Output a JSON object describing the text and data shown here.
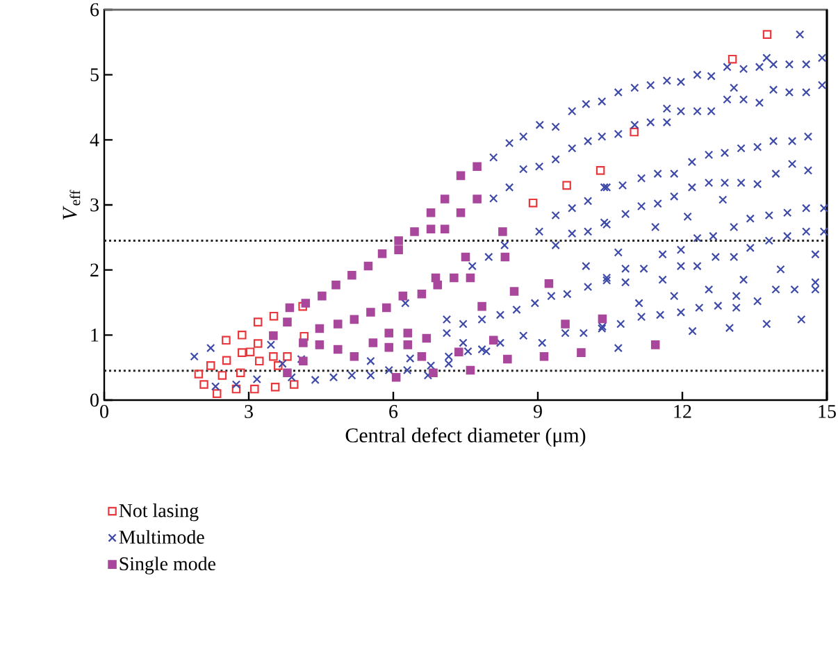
{
  "chart_data": {
    "type": "scatter",
    "xlabel": "Central defect diameter (μm)",
    "ylabel": "*V*$_{eff}$",
    "xlim": [
      0,
      15
    ],
    "ylim": [
      0,
      6
    ],
    "xticks": [
      0,
      3,
      6,
      9,
      12,
      15
    ],
    "yticks": [
      0,
      1,
      2,
      3,
      4,
      5,
      6
    ],
    "grid": false,
    "legend": "bottom left",
    "ref_lines": [
      {
        "axis": "y",
        "value": 2.45,
        "color": "#222222",
        "line_style": "dotted"
      },
      {
        "axis": "y",
        "value": 0.45,
        "color": "#222222",
        "line_style": "dotted"
      }
    ],
    "series": [
      {
        "name": "Not lasing",
        "color": "#e8383d",
        "marker": "square-open",
        "x": [
          2.53,
          2.86,
          3.19,
          3.52,
          4.12,
          4.15,
          3.19,
          2.86,
          2.54,
          2.21,
          1.96,
          2.07,
          2.34,
          2.74,
          3.12,
          3.55,
          3.94,
          2.45,
          2.83,
          3.22,
          3.51,
          3.8,
          3.03,
          3.61,
          8.9,
          9.6,
          10.3,
          11.0,
          13.04,
          13.76
        ],
        "values": [
          0.92,
          1.0,
          1.2,
          1.29,
          1.44,
          0.98,
          0.87,
          0.73,
          0.61,
          0.53,
          0.4,
          0.24,
          0.1,
          0.17,
          0.17,
          0.2,
          0.24,
          0.38,
          0.42,
          0.6,
          0.67,
          0.67,
          0.74,
          0.53,
          3.03,
          3.3,
          3.53,
          4.12,
          5.24,
          5.62
        ]
      },
      {
        "name": "Multimode",
        "color": "#3d4aa8",
        "marker": "cross",
        "x": [
          1.87,
          2.21,
          2.31,
          2.74,
          3.17,
          3.46,
          3.7,
          4.09,
          4.38,
          4.76,
          5.14,
          5.53,
          3.89,
          8.08,
          8.41,
          8.7,
          9.04,
          9.37,
          9.71,
          10.0,
          10.33,
          8.08,
          8.41,
          8.7,
          9.03,
          9.37,
          9.71,
          10.04,
          10.33,
          9.37,
          9.71,
          10.04,
          10.38,
          9.03,
          9.37,
          9.71,
          10.04,
          10.38,
          7.64,
          7.98,
          8.31,
          10.0,
          10.43,
          10.04,
          9.61,
          9.28,
          8.94,
          8.56,
          8.22,
          7.84,
          7.45,
          7.11,
          6.25,
          7.11,
          7.45,
          7.84,
          8.22,
          8.7,
          9.09,
          9.57,
          9.95,
          10.33,
          5.53,
          5.91,
          6.35,
          6.78,
          7.15,
          7.55,
          7.93,
          6.29,
          6.72,
          7.15,
          10.67,
          11.01,
          11.34,
          11.68,
          11.97,
          12.31,
          12.6,
          12.93,
          13.27,
          13.6,
          13.89,
          14.22,
          14.57,
          14.9,
          14.44,
          13.75,
          10.67,
          11.01,
          11.34,
          11.68,
          11.68,
          11.97,
          12.31,
          12.6,
          12.93,
          13.27,
          13.6,
          13.89,
          14.22,
          14.57,
          14.9,
          13.07,
          10.43,
          10.76,
          11.15,
          11.49,
          11.83,
          12.2,
          12.55,
          12.88,
          13.22,
          13.56,
          13.89,
          14.28,
          14.61,
          10.43,
          10.82,
          11.15,
          11.49,
          11.83,
          12.2,
          12.55,
          12.88,
          13.22,
          13.56,
          13.94,
          14.28,
          14.61,
          12.84,
          11.44,
          12.11,
          12.31,
          12.64,
          13.07,
          13.41,
          13.8,
          14.18,
          14.57,
          14.94,
          14.57,
          14.94,
          13.8,
          14.18,
          10.67,
          10.43,
          10.82,
          11.2,
          11.59,
          11.97,
          11.97,
          12.31,
          12.69,
          13.07,
          13.41,
          14.04,
          14.76,
          10.82,
          11.59,
          13.27,
          11.1,
          11.83,
          12.55,
          13.12,
          13.94,
          14.33,
          14.76,
          14.76,
          10.72,
          11.15,
          11.54,
          11.97,
          12.35,
          12.74,
          13.12,
          13.56,
          10.34,
          10.67,
          12.21,
          12.98,
          13.75,
          14.47
        ],
        "values": [
          0.67,
          0.8,
          0.21,
          0.24,
          0.32,
          0.85,
          0.56,
          0.63,
          0.31,
          0.35,
          0.38,
          0.6,
          0.35,
          3.73,
          3.95,
          4.05,
          4.23,
          4.2,
          4.44,
          4.55,
          4.59,
          3.1,
          3.27,
          3.55,
          3.59,
          3.7,
          3.87,
          3.98,
          4.05,
          2.84,
          2.95,
          3.06,
          3.27,
          2.59,
          2.38,
          2.56,
          2.59,
          2.73,
          2.06,
          2.2,
          2.38,
          2.06,
          1.84,
          1.74,
          1.63,
          1.6,
          1.49,
          1.39,
          1.31,
          1.24,
          1.17,
          1.24,
          1.49,
          1.03,
          0.88,
          0.78,
          0.88,
          0.99,
          0.88,
          1.03,
          1.03,
          1.1,
          0.38,
          0.46,
          0.64,
          0.53,
          0.67,
          0.75,
          0.75,
          0.46,
          0.38,
          0.56,
          4.73,
          4.8,
          4.84,
          4.91,
          4.89,
          5.0,
          4.98,
          5.12,
          5.09,
          5.12,
          5.16,
          5.16,
          5.16,
          5.26,
          5.62,
          5.26,
          4.09,
          4.23,
          4.27,
          4.27,
          4.48,
          4.44,
          4.44,
          4.44,
          4.62,
          4.62,
          4.57,
          4.77,
          4.73,
          4.73,
          4.84,
          4.8,
          3.27,
          3.3,
          3.41,
          3.48,
          3.48,
          3.66,
          3.77,
          3.8,
          3.87,
          3.89,
          3.98,
          3.98,
          4.05,
          2.7,
          2.86,
          2.98,
          3.02,
          3.13,
          3.27,
          3.34,
          3.34,
          3.34,
          3.32,
          3.48,
          3.63,
          3.53,
          3.08,
          2.66,
          2.82,
          2.49,
          2.52,
          2.66,
          2.79,
          2.84,
          2.88,
          2.95,
          2.95,
          2.59,
          2.59,
          2.45,
          2.52,
          2.27,
          1.88,
          2.02,
          2.02,
          2.24,
          2.31,
          2.06,
          2.06,
          2.2,
          2.2,
          2.34,
          2.01,
          2.24,
          1.81,
          1.85,
          1.85,
          1.49,
          1.6,
          1.7,
          1.6,
          1.7,
          1.7,
          1.81,
          1.7,
          1.17,
          1.28,
          1.31,
          1.35,
          1.42,
          1.45,
          1.42,
          1.52,
          1.13,
          0.8,
          1.06,
          1.11,
          1.17,
          1.24
        ]
      },
      {
        "name": "Single mode",
        "color": "#a8479b",
        "marker": "square",
        "x": [
          3.85,
          4.18,
          4.52,
          4.81,
          5.14,
          5.48,
          5.77,
          6.11,
          6.11,
          6.44,
          6.78,
          7.07,
          6.78,
          7.07,
          7.4,
          7.4,
          7.74,
          7.74,
          8.27,
          3.8,
          3.51,
          4.13,
          4.47,
          4.85,
          5.19,
          5.53,
          4.47,
          4.85,
          5.19,
          4.13,
          3.8,
          5.86,
          6.2,
          6.59,
          6.92,
          6.88,
          7.26,
          7.6,
          7.5,
          8.32,
          8.51,
          9.23,
          5.91,
          6.3,
          6.69,
          5.58,
          5.91,
          6.3,
          6.59,
          6.06,
          6.83,
          7.6,
          7.36,
          7.84,
          8.08,
          8.37,
          9.13,
          9.57,
          9.9,
          10.34,
          11.44
        ],
        "values": [
          1.42,
          1.49,
          1.6,
          1.77,
          1.92,
          2.06,
          2.25,
          2.31,
          2.45,
          2.59,
          2.63,
          2.63,
          2.88,
          3.09,
          2.88,
          3.45,
          3.09,
          3.59,
          2.59,
          1.2,
          0.99,
          0.88,
          1.1,
          1.17,
          1.24,
          1.35,
          0.85,
          0.78,
          0.67,
          0.6,
          0.42,
          1.42,
          1.6,
          1.63,
          1.77,
          1.88,
          1.88,
          1.88,
          2.2,
          2.2,
          1.67,
          1.79,
          1.03,
          1.03,
          0.95,
          0.88,
          0.81,
          0.85,
          0.67,
          0.35,
          0.42,
          0.46,
          0.74,
          1.44,
          0.92,
          0.63,
          0.67,
          1.17,
          0.73,
          1.25,
          0.85
        ]
      }
    ]
  }
}
